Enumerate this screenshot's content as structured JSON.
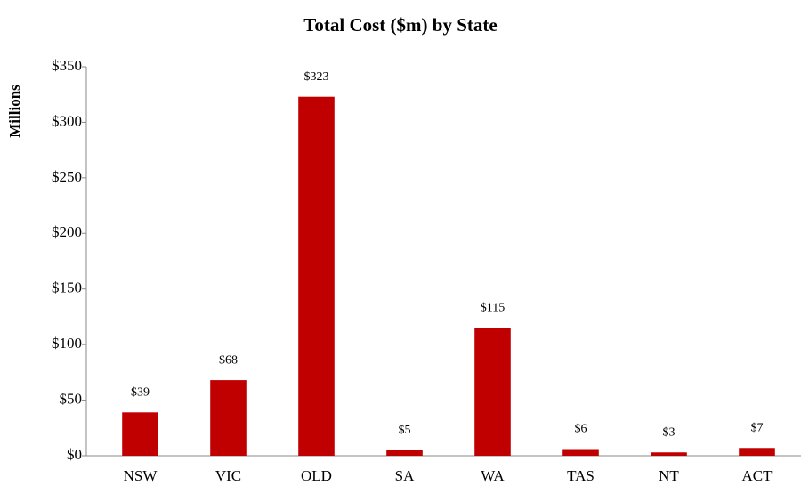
{
  "chart_data": {
    "type": "bar",
    "title": "Total Cost ($m) by State",
    "y_label": "Millions",
    "categories": [
      "NSW",
      "VIC",
      "OLD",
      "SA",
      "WA",
      "TAS",
      "NT",
      "ACT"
    ],
    "values": [
      39,
      68,
      323,
      5,
      115,
      6,
      3,
      7
    ],
    "value_labels": [
      "$39",
      "$68",
      "$323",
      "$5",
      "$115",
      "$6",
      "$3",
      "$7"
    ],
    "color": "#c00000",
    "ylim": [
      0,
      350
    ],
    "yticks": [
      {
        "value": 0,
        "label": "$0"
      },
      {
        "value": 50,
        "label": "$50"
      },
      {
        "value": 100,
        "label": "$100"
      },
      {
        "value": 150,
        "label": "$150"
      },
      {
        "value": 200,
        "label": "$200"
      },
      {
        "value": 250,
        "label": "$250"
      },
      {
        "value": 300,
        "label": "$300"
      },
      {
        "value": 350,
        "label": "$350"
      }
    ],
    "grid": false
  }
}
